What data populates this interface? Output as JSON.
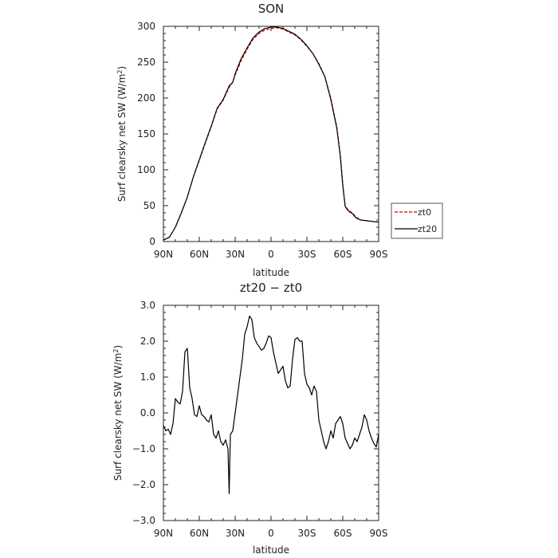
{
  "chart_data": [
    {
      "type": "line",
      "title": "SON",
      "xlabel": "latitude",
      "ylabel": "Surf clearsky net SW (W/m",
      "ylabel_sup": "2",
      "ylabel_close": ")",
      "x_ticks": [
        {
          "value": -90,
          "label": "90N"
        },
        {
          "value": -60,
          "label": "60N"
        },
        {
          "value": -30,
          "label": "30N"
        },
        {
          "value": 0,
          "label": "0"
        },
        {
          "value": 30,
          "label": "30S"
        },
        {
          "value": 60,
          "label": "60S"
        },
        {
          "value": 90,
          "label": "90S"
        }
      ],
      "y_ticks": [
        {
          "value": 0,
          "label": "0"
        },
        {
          "value": 50,
          "label": "50"
        },
        {
          "value": 100,
          "label": "100"
        },
        {
          "value": 150,
          "label": "150"
        },
        {
          "value": 200,
          "label": "200"
        },
        {
          "value": 250,
          "label": "250"
        },
        {
          "value": 300,
          "label": "300"
        }
      ],
      "xlim": [
        -90,
        90
      ],
      "ylim": [
        0,
        300
      ],
      "legend_position": "outside-right",
      "series": [
        {
          "name": "zt0",
          "color": "#cc0000",
          "dash": true,
          "x": [
            -90,
            -85,
            -80,
            -75,
            -70,
            -65,
            -60,
            -55,
            -50,
            -45,
            -40,
            -35,
            -32,
            -30,
            -25,
            -20,
            -15,
            -10,
            -5,
            0,
            5,
            10,
            15,
            20,
            25,
            30,
            35,
            40,
            45,
            50,
            55,
            58,
            60,
            62,
            64,
            66,
            68,
            70,
            72,
            75,
            80,
            85,
            90
          ],
          "y": [
            2,
            6,
            20,
            40,
            62,
            90,
            113,
            137,
            160,
            185,
            197,
            215,
            222,
            232,
            252,
            268,
            282,
            290,
            295,
            297,
            298,
            296,
            292,
            288,
            281,
            272,
            262,
            248,
            230,
            200,
            160,
            120,
            80,
            50,
            45,
            42,
            40,
            36,
            33,
            30,
            29,
            28,
            27
          ]
        },
        {
          "name": "zt20",
          "color": "#000000",
          "dash": false,
          "x": [
            -90,
            -85,
            -80,
            -75,
            -70,
            -65,
            -60,
            -55,
            -50,
            -45,
            -40,
            -35,
            -32,
            -30,
            -25,
            -20,
            -15,
            -10,
            -5,
            0,
            5,
            10,
            15,
            20,
            25,
            30,
            35,
            40,
            45,
            50,
            55,
            58,
            60,
            62,
            64,
            66,
            68,
            70,
            72,
            75,
            80,
            85,
            90
          ],
          "y": [
            2,
            6,
            20,
            40,
            62,
            90,
            114,
            138,
            161,
            186,
            198,
            217,
            222,
            234,
            255,
            270,
            284,
            292,
            297,
            299,
            299,
            297,
            293,
            289,
            282,
            273,
            262,
            247,
            230,
            198,
            158,
            118,
            78,
            49,
            44,
            41,
            39,
            35,
            32,
            30,
            29,
            28,
            27
          ]
        }
      ]
    },
    {
      "type": "line",
      "title": "zt20 − zt0",
      "xlabel": "latitude",
      "ylabel": "Surf clearsky net SW (W/m",
      "ylabel_sup": "2",
      "ylabel_close": ")",
      "x_ticks": [
        {
          "value": -90,
          "label": "90N"
        },
        {
          "value": -60,
          "label": "60N"
        },
        {
          "value": -30,
          "label": "30N"
        },
        {
          "value": 0,
          "label": "0"
        },
        {
          "value": 30,
          "label": "30S"
        },
        {
          "value": 60,
          "label": "60S"
        },
        {
          "value": 90,
          "label": "90S"
        }
      ],
      "y_ticks": [
        {
          "value": -3,
          "label": "−3.0"
        },
        {
          "value": -2,
          "label": "−2.0"
        },
        {
          "value": -1,
          "label": "−1.0"
        },
        {
          "value": 0,
          "label": "0.0"
        },
        {
          "value": 1,
          "label": "1.0"
        },
        {
          "value": 2,
          "label": "2.0"
        },
        {
          "value": 3,
          "label": "3.0"
        }
      ],
      "xlim": [
        -90,
        90
      ],
      "ylim": [
        -3,
        3
      ],
      "series": [
        {
          "name": "",
          "color": "#000000",
          "dash": false,
          "x": [
            -90,
            -88,
            -86,
            -84,
            -82,
            -80,
            -78,
            -76,
            -74,
            -72,
            -70,
            -68,
            -66,
            -64,
            -62,
            -60,
            -58,
            -56,
            -54,
            -52,
            -50,
            -48,
            -46,
            -44,
            -42,
            -40,
            -38,
            -36,
            -35,
            -34,
            -32,
            -30,
            -28,
            -26,
            -24,
            -22,
            -20,
            -18,
            -16,
            -14,
            -12,
            -10,
            -8,
            -6,
            -4,
            -2,
            0,
            2,
            4,
            6,
            8,
            10,
            12,
            14,
            16,
            18,
            20,
            22,
            24,
            26,
            28,
            30,
            32,
            34,
            36,
            38,
            40,
            42,
            44,
            46,
            48,
            50,
            52,
            54,
            56,
            58,
            60,
            62,
            64,
            66,
            68,
            70,
            72,
            74,
            76,
            78,
            80,
            82,
            84,
            86,
            88,
            90
          ],
          "y": [
            -0.35,
            -0.5,
            -0.45,
            -0.6,
            -0.3,
            0.4,
            0.3,
            0.25,
            0.6,
            1.7,
            1.8,
            0.7,
            0.4,
            -0.05,
            -0.1,
            0.2,
            -0.05,
            -0.1,
            -0.2,
            -0.25,
            -0.05,
            -0.6,
            -0.7,
            -0.5,
            -0.8,
            -0.9,
            -0.75,
            -1.0,
            -2.25,
            -0.6,
            -0.5,
            0.0,
            0.5,
            1.0,
            1.5,
            2.2,
            2.4,
            2.7,
            2.6,
            2.1,
            1.95,
            1.85,
            1.75,
            1.8,
            1.95,
            2.15,
            2.1,
            1.7,
            1.4,
            1.1,
            1.2,
            1.3,
            0.9,
            0.7,
            0.75,
            1.5,
            2.05,
            2.1,
            2.0,
            2.0,
            1.1,
            0.8,
            0.7,
            0.5,
            0.75,
            0.6,
            -0.2,
            -0.5,
            -0.8,
            -1.0,
            -0.8,
            -0.5,
            -0.7,
            -0.3,
            -0.2,
            -0.1,
            -0.3,
            -0.7,
            -0.85,
            -1.0,
            -0.9,
            -0.7,
            -0.8,
            -0.6,
            -0.4,
            -0.05,
            -0.2,
            -0.5,
            -0.7,
            -0.85,
            -0.95,
            -0.6
          ]
        }
      ]
    }
  ]
}
